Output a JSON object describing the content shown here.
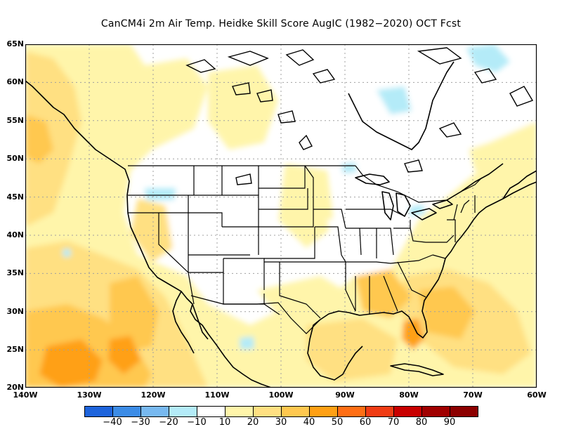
{
  "title": "CanCM4i  2m Air Temp. Heidke Skill Score AugIC (1982−2020) OCT Fcst",
  "axes": {
    "lat_labels": [
      "65N",
      "60N",
      "55N",
      "50N",
      "45N",
      "40N",
      "35N",
      "30N",
      "25N",
      "20N"
    ],
    "lon_labels": [
      "140W",
      "130W",
      "120W",
      "110W",
      "100W",
      "90W",
      "80W",
      "70W",
      "60W"
    ],
    "lat_range": [
      20,
      65
    ],
    "lon_range": [
      -140,
      -60
    ],
    "grid": "dotted"
  },
  "colorbar": {
    "labels": [
      "−40",
      "−30",
      "−20",
      "−10",
      "10",
      "20",
      "30",
      "40",
      "50",
      "60",
      "70",
      "80",
      "90"
    ],
    "colors": [
      "#1e64dc",
      "#3c8ce6",
      "#78b9f0",
      "#b4ebf8",
      "#ffffff",
      "#fff5aa",
      "#ffe082",
      "#ffc850",
      "#ffa014",
      "#ff6e14",
      "#f03c14",
      "#c80000",
      "#a00000",
      "#8c0000"
    ]
  },
  "regions": [
    {
      "name": "Pacific subtropics (southwest)",
      "level": "30-40"
    },
    {
      "name": "Pacific off Baja California",
      "level": "20-40"
    },
    {
      "name": "Gulf of Mexico",
      "level": "20-30"
    },
    {
      "name": "Western Atlantic off Florida/Carolinas",
      "level": "20-40"
    },
    {
      "name": "Florida peninsula",
      "level": "40-50"
    },
    {
      "name": "Northwest Pacific coast",
      "level": "20-30"
    },
    {
      "name": "Central and eastern Canada",
      "level": "-10-10"
    },
    {
      "name": "Hudson Bay / Labrador patches",
      "level": "-20-10"
    },
    {
      "name": "Western United States interior",
      "level": "-10-10"
    }
  ]
}
